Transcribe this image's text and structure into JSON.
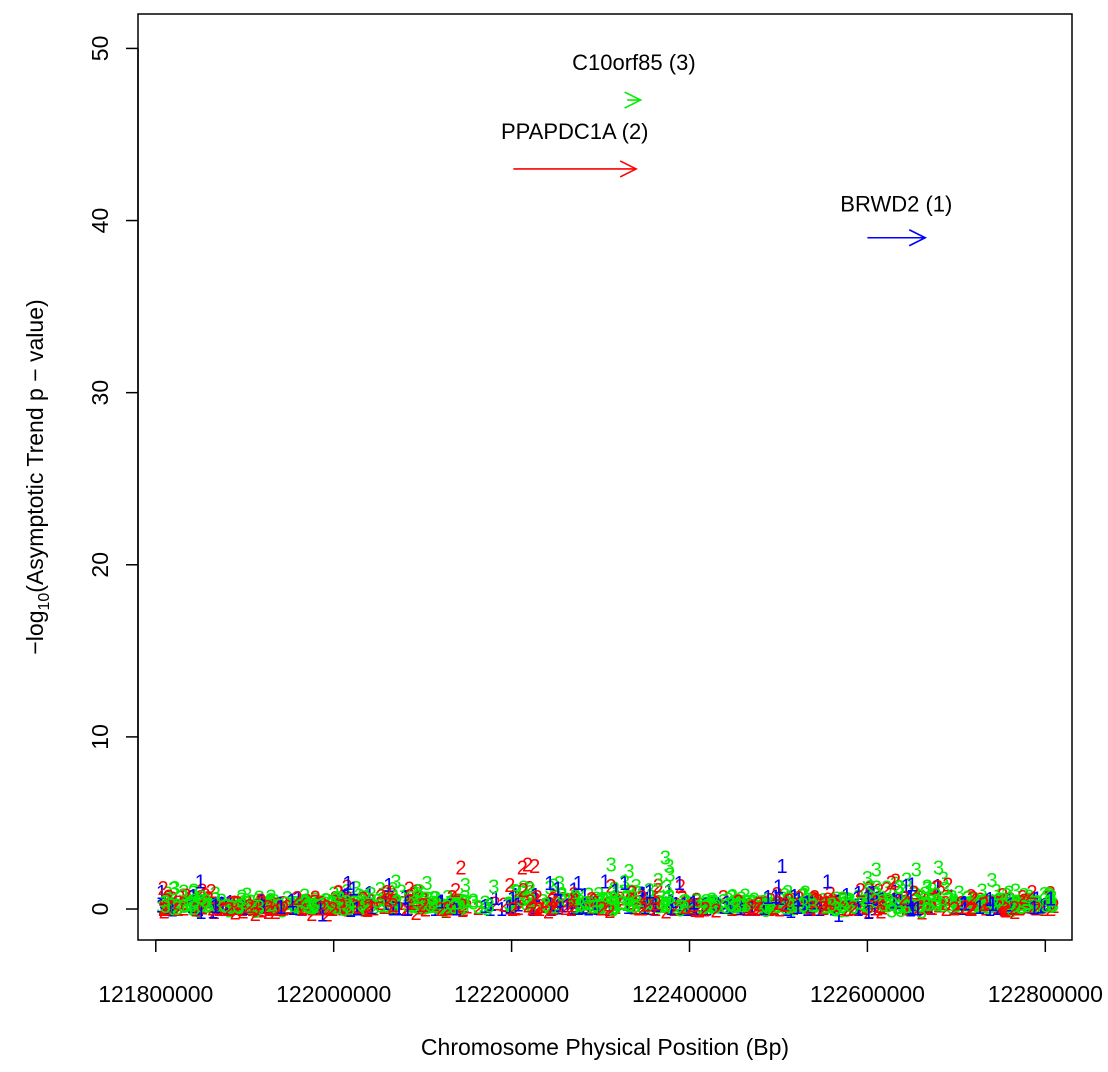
{
  "chart_data": {
    "type": "scatter",
    "xlabel": "Chromosome Physical Position (Bp)",
    "ylabel_prefix": "−log",
    "ylabel_sub": "10",
    "ylabel_rest": "(Asymptotic Trend p − value)",
    "xlim": [
      121780000,
      122830000
    ],
    "ylim": [
      -1.8,
      52
    ],
    "x_ticks": [
      121800000,
      122000000,
      122200000,
      122400000,
      122600000,
      122800000
    ],
    "x_tick_labels": [
      "121800000",
      "122000000",
      "122200000",
      "122400000",
      "122600000",
      "122800000"
    ],
    "y_ticks": [
      0,
      10,
      20,
      30,
      40,
      50
    ],
    "y_tick_labels": [
      "0",
      "10",
      "20",
      "30",
      "40",
      "50"
    ],
    "series": [
      {
        "name": "1",
        "color": "#0000FF",
        "marker": "1"
      },
      {
        "name": "2",
        "color": "#FF0000",
        "marker": "2"
      },
      {
        "name": "3",
        "color": "#00EE00",
        "marker": "3"
      }
    ],
    "genes": [
      {
        "label": "BRWD2 (1)",
        "color": "#0000FF",
        "start": 122600000,
        "end": 122665000,
        "y": 39,
        "label_y": 41
      },
      {
        "label": "PPAPDC1A (2)",
        "color": "#FF0000",
        "start": 122202000,
        "end": 122340000,
        "y": 43,
        "label_y": 45.2
      },
      {
        "label": "C10orf85 (3)",
        "color": "#00EE00",
        "start": 122330000,
        "end": 122345000,
        "y": 47,
        "label_y": 49.2
      }
    ],
    "points_note": "",
    "highlight_points": [
      {
        "series": "2",
        "x": 122143000,
        "y": 2.4
      },
      {
        "series": "2",
        "x": 122137000,
        "y": 1.1
      },
      {
        "series": "2",
        "x": 122212000,
        "y": 2.4
      },
      {
        "series": "2",
        "x": 122218000,
        "y": 2.6
      },
      {
        "series": "2",
        "x": 122226000,
        "y": 2.5
      },
      {
        "series": "2",
        "x": 122198000,
        "y": 1.4
      },
      {
        "series": "2",
        "x": 122213000,
        "y": 1.1
      },
      {
        "series": "1",
        "x": 122243000,
        "y": 1.5
      },
      {
        "series": "1",
        "x": 122252000,
        "y": 1.2
      },
      {
        "series": "1",
        "x": 122275000,
        "y": 1.5
      },
      {
        "series": "1",
        "x": 122504000,
        "y": 2.5
      },
      {
        "series": "1",
        "x": 122500000,
        "y": 1.3
      },
      {
        "series": "1",
        "x": 122555000,
        "y": 1.6
      },
      {
        "series": "1",
        "x": 122016000,
        "y": 1.5
      },
      {
        "series": "1",
        "x": 122022000,
        "y": 1.2
      },
      {
        "series": "1",
        "x": 121850000,
        "y": 1.6
      },
      {
        "series": "1",
        "x": 122062000,
        "y": 1.4
      },
      {
        "series": "3",
        "x": 122312000,
        "y": 2.6
      },
      {
        "series": "3",
        "x": 122332000,
        "y": 2.2
      },
      {
        "series": "3",
        "x": 122365000,
        "y": 1.7
      },
      {
        "series": "3",
        "x": 122373000,
        "y": 3.0
      },
      {
        "series": "3",
        "x": 122377000,
        "y": 2.5
      },
      {
        "series": "3",
        "x": 122378000,
        "y": 2.0
      },
      {
        "series": "3",
        "x": 122148000,
        "y": 1.4
      },
      {
        "series": "3",
        "x": 122105000,
        "y": 1.5
      },
      {
        "series": "3",
        "x": 121820000,
        "y": 1.2
      },
      {
        "series": "3",
        "x": 122740000,
        "y": 1.7
      },
      {
        "series": "3",
        "x": 122655000,
        "y": 2.3
      },
      {
        "series": "3",
        "x": 122680000,
        "y": 2.4
      },
      {
        "series": "3",
        "x": 122610000,
        "y": 2.3
      },
      {
        "series": "3",
        "x": 122600000,
        "y": 1.8
      },
      {
        "series": "3",
        "x": 122180000,
        "y": 1.3
      },
      {
        "series": "3",
        "x": 122070000,
        "y": 1.6
      },
      {
        "series": "2",
        "x": 122060000,
        "y": 1.0
      },
      {
        "series": "2",
        "x": 122785000,
        "y": 1.0
      },
      {
        "series": "1",
        "x": 122806000,
        "y": 0.6
      }
    ]
  }
}
